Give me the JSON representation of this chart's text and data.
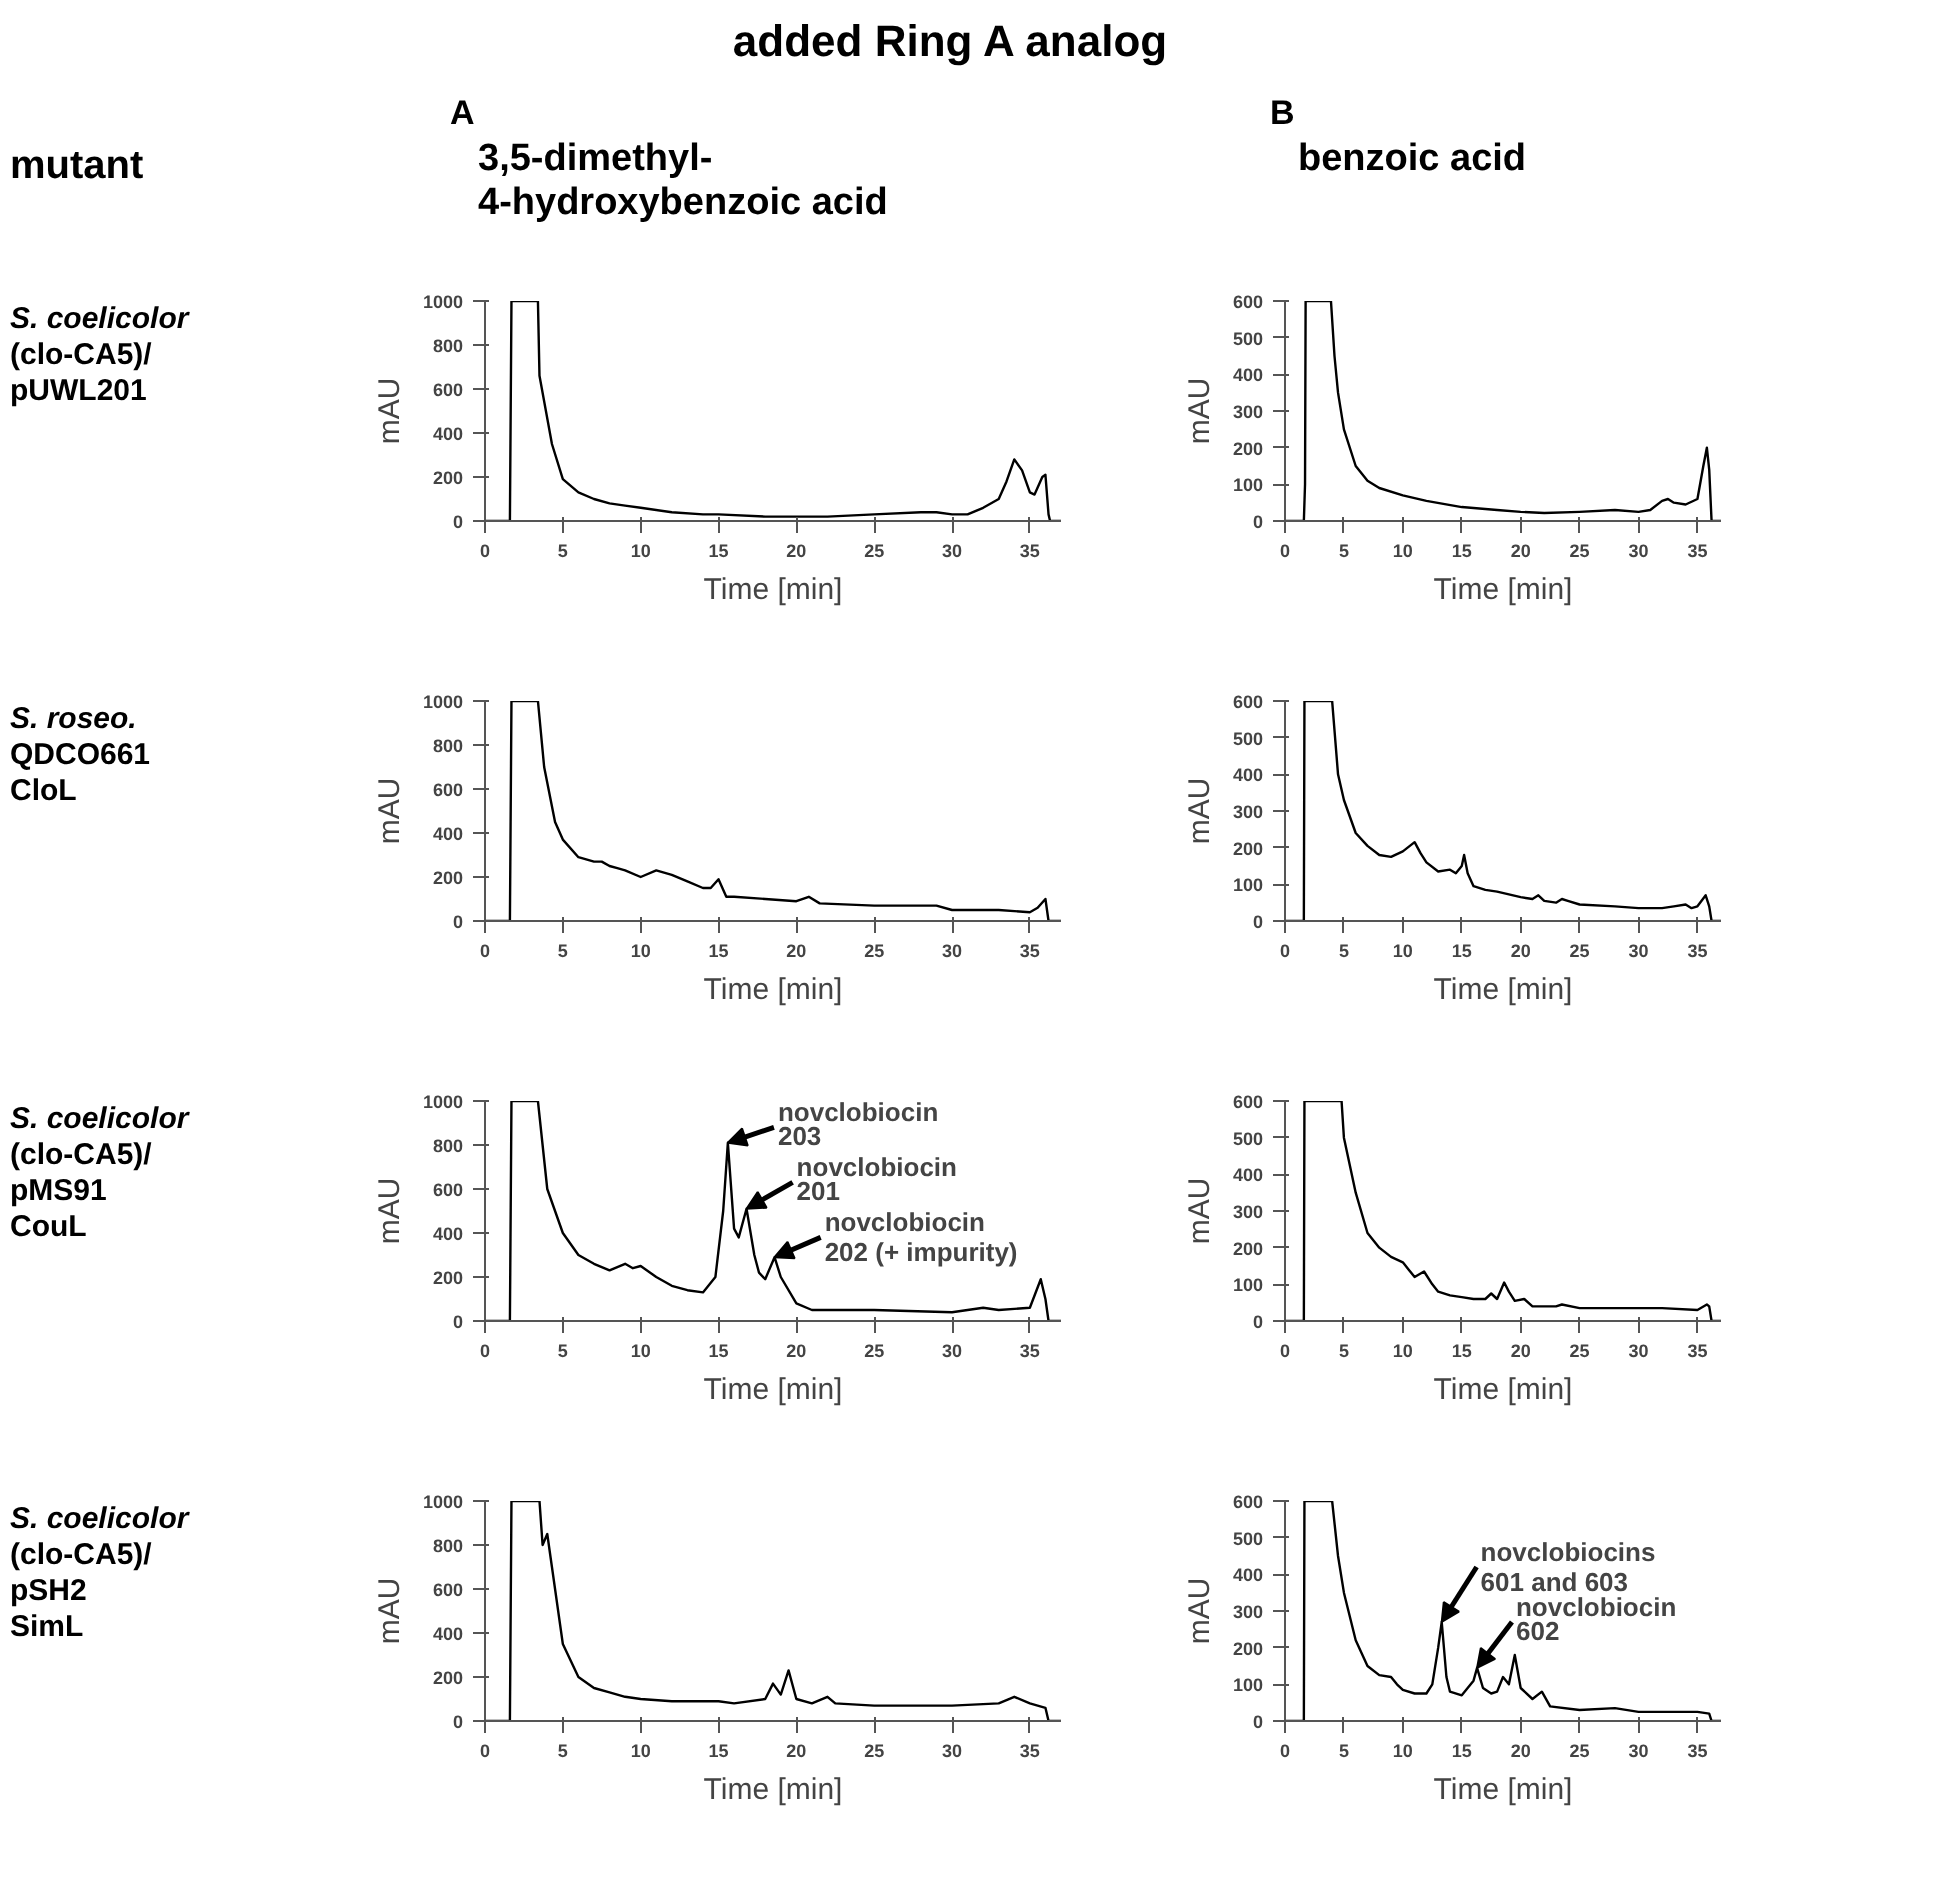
{
  "chart_data": [
    {
      "type": "other",
      "title": "added Ring A analog",
      "annotations": [
        "mutant"
      ]
    },
    {
      "type": "line",
      "title": "3,5-dimethyl-\n4-hydroxybenzoic acid",
      "subtitle": "A",
      "annotations": [
        "S. coelicolor\n(clo-CA5)/\npUWL201"
      ],
      "xlabel": "Time [min]",
      "ylabel": "mAU",
      "xlim": [
        0,
        37
      ],
      "xticks": [
        0,
        5,
        10,
        15,
        20,
        25,
        30,
        35
      ],
      "ylim": [
        0,
        1000
      ],
      "yticks": [
        0,
        200,
        400,
        600,
        800,
        1000
      ],
      "color": "#000000",
      "x": [
        0,
        1.6,
        1.7,
        3.4,
        3.5,
        4.3,
        5,
        6,
        7,
        8,
        9,
        10,
        12,
        14,
        15,
        18,
        22,
        25,
        28,
        29,
        30,
        31,
        32,
        33,
        33.5,
        34,
        34.5,
        35,
        35.3,
        35.8,
        36,
        36.2,
        36.3,
        37
      ],
      "values": [
        0,
        0,
        1000,
        1000,
        660,
        350,
        190,
        130,
        100,
        80,
        70,
        60,
        40,
        30,
        30,
        20,
        20,
        30,
        40,
        40,
        30,
        30,
        60,
        100,
        180,
        280,
        230,
        130,
        120,
        200,
        210,
        30,
        0,
        0
      ]
    },
    {
      "type": "line",
      "title": "benzoic acid",
      "subtitle": "B",
      "xlabel": "Time [min]",
      "ylabel": "mAU",
      "xlim": [
        0,
        37
      ],
      "xticks": [
        0,
        5,
        10,
        15,
        20,
        25,
        30,
        35
      ],
      "ylim": [
        0,
        600
      ],
      "yticks": [
        0,
        100,
        200,
        300,
        400,
        500,
        600
      ],
      "color": "#000000",
      "x": [
        0,
        1.6,
        1.7,
        1.75,
        3.9,
        4.2,
        4.5,
        5,
        6,
        7,
        8,
        10,
        12,
        15,
        18,
        20,
        22,
        25,
        28,
        30,
        31,
        32,
        32.5,
        33,
        34,
        35,
        35.5,
        35.8,
        36,
        36.2,
        37
      ],
      "values": [
        0,
        0,
        100,
        600,
        600,
        450,
        350,
        250,
        150,
        110,
        90,
        70,
        55,
        38,
        30,
        25,
        22,
        25,
        30,
        25,
        30,
        55,
        60,
        50,
        45,
        60,
        150,
        200,
        140,
        0,
        0
      ]
    },
    {
      "type": "line",
      "annotations": [
        "S. roseo.\nQDCO661\nCloL"
      ],
      "xlabel": "Time [min]",
      "ylabel": "mAU",
      "xlim": [
        0,
        37
      ],
      "xticks": [
        0,
        5,
        10,
        15,
        20,
        25,
        30,
        35
      ],
      "ylim": [
        0,
        1000
      ],
      "yticks": [
        0,
        200,
        400,
        600,
        800,
        1000
      ],
      "color": "#000000",
      "x": [
        0,
        1.6,
        1.7,
        3.4,
        3.8,
        4.5,
        5,
        6,
        7,
        7.5,
        8,
        8.5,
        9,
        10,
        11,
        11.5,
        12,
        13,
        14,
        14.5,
        15,
        15.5,
        16,
        18,
        20,
        20.8,
        21.5,
        25,
        28,
        29,
        30,
        33,
        35,
        35.5,
        36,
        36.2,
        37
      ],
      "values": [
        0,
        0,
        1000,
        1000,
        700,
        450,
        370,
        290,
        270,
        270,
        250,
        240,
        230,
        200,
        230,
        220,
        210,
        180,
        150,
        150,
        190,
        110,
        110,
        100,
        90,
        110,
        80,
        70,
        70,
        70,
        50,
        50,
        40,
        60,
        100,
        0,
        0
      ]
    },
    {
      "type": "line",
      "xlabel": "Time [min]",
      "ylabel": "mAU",
      "xlim": [
        0,
        37
      ],
      "xticks": [
        0,
        5,
        10,
        15,
        20,
        25,
        30,
        35
      ],
      "ylim": [
        0,
        600
      ],
      "yticks": [
        0,
        100,
        200,
        300,
        400,
        500,
        600
      ],
      "color": "#000000",
      "x": [
        0,
        1.6,
        1.65,
        4.0,
        4.5,
        5,
        6,
        7,
        8,
        9,
        10,
        11,
        11.5,
        12,
        13,
        14,
        14.5,
        15,
        15.2,
        15.5,
        16,
        17,
        18,
        20,
        21,
        21.5,
        22,
        23,
        23.5,
        24,
        25,
        28,
        30,
        32,
        33,
        34,
        34.5,
        35,
        35.7,
        36,
        36.2,
        37
      ],
      "values": [
        0,
        0,
        600,
        600,
        400,
        330,
        240,
        205,
        180,
        175,
        190,
        215,
        185,
        160,
        135,
        140,
        130,
        150,
        180,
        130,
        95,
        85,
        80,
        65,
        60,
        70,
        55,
        50,
        60,
        55,
        45,
        40,
        35,
        35,
        40,
        45,
        35,
        40,
        70,
        40,
        0,
        0
      ]
    },
    {
      "type": "line",
      "annotations": [
        "S. coelicolor\n(clo-CA5)/\npMS91\nCouL",
        {
          "text": "novclobiocin\n203",
          "x": 15.6,
          "y": 810
        },
        {
          "text": "novclobiocin\n201",
          "x": 16.8,
          "y": 510
        },
        {
          "text": "novclobiocin\n202 (+ impurity)",
          "x": 18.6,
          "y": 290
        }
      ],
      "xlabel": "Time [min]",
      "ylabel": "mAU",
      "xlim": [
        0,
        37
      ],
      "xticks": [
        0,
        5,
        10,
        15,
        20,
        25,
        30,
        35
      ],
      "ylim": [
        0,
        1000
      ],
      "yticks": [
        0,
        200,
        400,
        600,
        800,
        1000
      ],
      "color": "#000000",
      "x": [
        0,
        1.6,
        1.7,
        3.4,
        4,
        5,
        6,
        7,
        8,
        9,
        9.5,
        10,
        11,
        12,
        13,
        14,
        14.8,
        15.3,
        15.6,
        16,
        16.3,
        16.8,
        17.3,
        17.6,
        18,
        18.6,
        19,
        20,
        21,
        25,
        30,
        32,
        33,
        35,
        35.7,
        36,
        36.2,
        37
      ],
      "values": [
        0,
        0,
        1000,
        1000,
        600,
        400,
        300,
        260,
        230,
        260,
        240,
        250,
        200,
        160,
        140,
        130,
        200,
        500,
        810,
        420,
        380,
        510,
        300,
        220,
        190,
        290,
        200,
        80,
        50,
        50,
        40,
        60,
        50,
        60,
        190,
        100,
        0,
        0
      ]
    },
    {
      "type": "line",
      "xlabel": "Time [min]",
      "ylabel": "mAU",
      "xlim": [
        0,
        37
      ],
      "xticks": [
        0,
        5,
        10,
        15,
        20,
        25,
        30,
        35
      ],
      "ylim": [
        0,
        600
      ],
      "yticks": [
        0,
        100,
        200,
        300,
        400,
        500,
        600
      ],
      "color": "#000000",
      "x": [
        0,
        1.6,
        1.65,
        4.8,
        5,
        6,
        7,
        8,
        9,
        10,
        10.5,
        11,
        11.8,
        12.5,
        13,
        14,
        15,
        16,
        17,
        17.5,
        18,
        18.6,
        19,
        19.5,
        20.3,
        21,
        23,
        23.5,
        25,
        30,
        32,
        35,
        35.8,
        36,
        36.2,
        37
      ],
      "values": [
        0,
        0,
        600,
        600,
        500,
        350,
        240,
        200,
        175,
        160,
        140,
        120,
        135,
        100,
        80,
        70,
        65,
        60,
        60,
        75,
        60,
        105,
        80,
        55,
        60,
        40,
        40,
        45,
        35,
        35,
        35,
        30,
        45,
        40,
        0,
        0
      ]
    },
    {
      "type": "line",
      "annotations": [
        "S. coelicolor\n(clo-CA5)/\npSH2\nSimL"
      ],
      "xlabel": "Time [min]",
      "ylabel": "mAU",
      "xlim": [
        0,
        37
      ],
      "xticks": [
        0,
        5,
        10,
        15,
        20,
        25,
        30,
        35
      ],
      "ylim": [
        0,
        1000
      ],
      "yticks": [
        0,
        200,
        400,
        600,
        800,
        1000
      ],
      "color": "#000000",
      "x": [
        0,
        1.6,
        1.7,
        3.5,
        3.7,
        4,
        4.3,
        5,
        6,
        7,
        8,
        9,
        10,
        12,
        14,
        15,
        16,
        18,
        18.5,
        19,
        19.5,
        20,
        21,
        22,
        22.5,
        25,
        30,
        33,
        34,
        35,
        36,
        36.2,
        37
      ],
      "values": [
        0,
        0,
        1000,
        1000,
        800,
        850,
        700,
        350,
        200,
        150,
        130,
        110,
        100,
        90,
        90,
        90,
        80,
        100,
        170,
        120,
        230,
        100,
        80,
        110,
        80,
        70,
        70,
        80,
        110,
        80,
        60,
        0,
        0
      ]
    },
    {
      "type": "line",
      "annotations": [
        {
          "text": "novclobiocins\n601 and 603",
          "x": 13.3,
          "y": 270
        },
        {
          "text": "novclobiocin\n602",
          "x": 16.3,
          "y": 145
        }
      ],
      "xlabel": "Time [min]",
      "ylabel": "mAU",
      "xlim": [
        0,
        37
      ],
      "xticks": [
        0,
        5,
        10,
        15,
        20,
        25,
        30,
        35
      ],
      "ylim": [
        0,
        600
      ],
      "yticks": [
        0,
        100,
        200,
        300,
        400,
        500,
        600
      ],
      "color": "#000000",
      "x": [
        0,
        1.6,
        1.65,
        4.0,
        4.5,
        5,
        6,
        7,
        8,
        9,
        9.5,
        10,
        11,
        12,
        12.5,
        13,
        13.3,
        13.7,
        14,
        15,
        16,
        16.3,
        16.8,
        17.5,
        18,
        18.5,
        19,
        19.5,
        20,
        21,
        21.8,
        22.5,
        25,
        28,
        30,
        35,
        36,
        36.2,
        37
      ],
      "values": [
        0,
        0,
        600,
        600,
        450,
        350,
        220,
        150,
        125,
        120,
        100,
        85,
        75,
        75,
        100,
        200,
        270,
        120,
        80,
        70,
        110,
        145,
        90,
        75,
        80,
        120,
        100,
        180,
        90,
        60,
        80,
        40,
        30,
        35,
        25,
        25,
        20,
        0,
        0
      ]
    }
  ]
}
